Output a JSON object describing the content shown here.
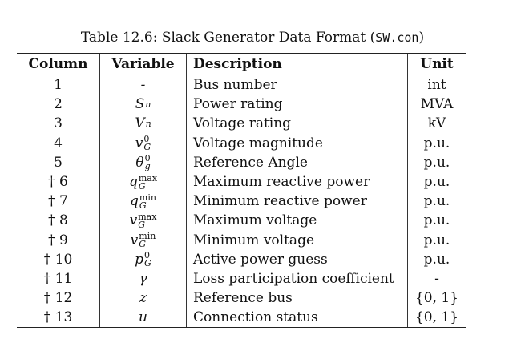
{
  "caption": {
    "prefix": "Table 12.6: Slack Generator Data Format (",
    "filename": "SW.con",
    "suffix": ")"
  },
  "headers": [
    "Column",
    "Variable",
    "Description",
    "Unit"
  ],
  "rows": [
    {
      "column": "1",
      "var_base": "-",
      "var_sup": "",
      "var_sub": "",
      "description": "Bus number",
      "unit": "int"
    },
    {
      "column": "2",
      "var_base": "S",
      "var_sup": "",
      "var_sub": "n",
      "description": "Power rating",
      "unit": "MVA"
    },
    {
      "column": "3",
      "var_base": "V",
      "var_sup": "",
      "var_sub": "n",
      "description": "Voltage rating",
      "unit": "kV"
    },
    {
      "column": "4",
      "var_base": "v",
      "var_sup": "0",
      "var_sub": "G",
      "description": "Voltage magnitude",
      "unit": "p.u."
    },
    {
      "column": "5",
      "var_base": "θ",
      "var_sup": "0",
      "var_sub": "g",
      "description": "Reference Angle",
      "unit": "p.u."
    },
    {
      "column": "† 6",
      "var_base": "q",
      "var_sup": "max",
      "var_sub": "G",
      "description": "Maximum reactive power",
      "unit": "p.u."
    },
    {
      "column": "† 7",
      "var_base": "q",
      "var_sup": "min",
      "var_sub": "G",
      "description": "Minimum reactive power",
      "unit": "p.u."
    },
    {
      "column": "† 8",
      "var_base": "v",
      "var_sup": "max",
      "var_sub": "G",
      "description": "Maximum voltage",
      "unit": "p.u."
    },
    {
      "column": "† 9",
      "var_base": "v",
      "var_sup": "min",
      "var_sub": "G",
      "description": "Minimum voltage",
      "unit": "p.u."
    },
    {
      "column": "† 10",
      "var_base": "p",
      "var_sup": "0",
      "var_sub": "G",
      "description": "Active power guess",
      "unit": "p.u."
    },
    {
      "column": "† 11",
      "var_base": "γ",
      "var_sup": "",
      "var_sub": "",
      "description": "Loss participation coefficient",
      "unit": "-"
    },
    {
      "column": "† 12",
      "var_base": "z",
      "var_sup": "",
      "var_sub": "",
      "description": "Reference bus",
      "unit": "{0, 1}"
    },
    {
      "column": "† 13",
      "var_base": "u",
      "var_sup": "",
      "var_sub": "",
      "description": "Connection status",
      "unit": "{0, 1}"
    }
  ]
}
